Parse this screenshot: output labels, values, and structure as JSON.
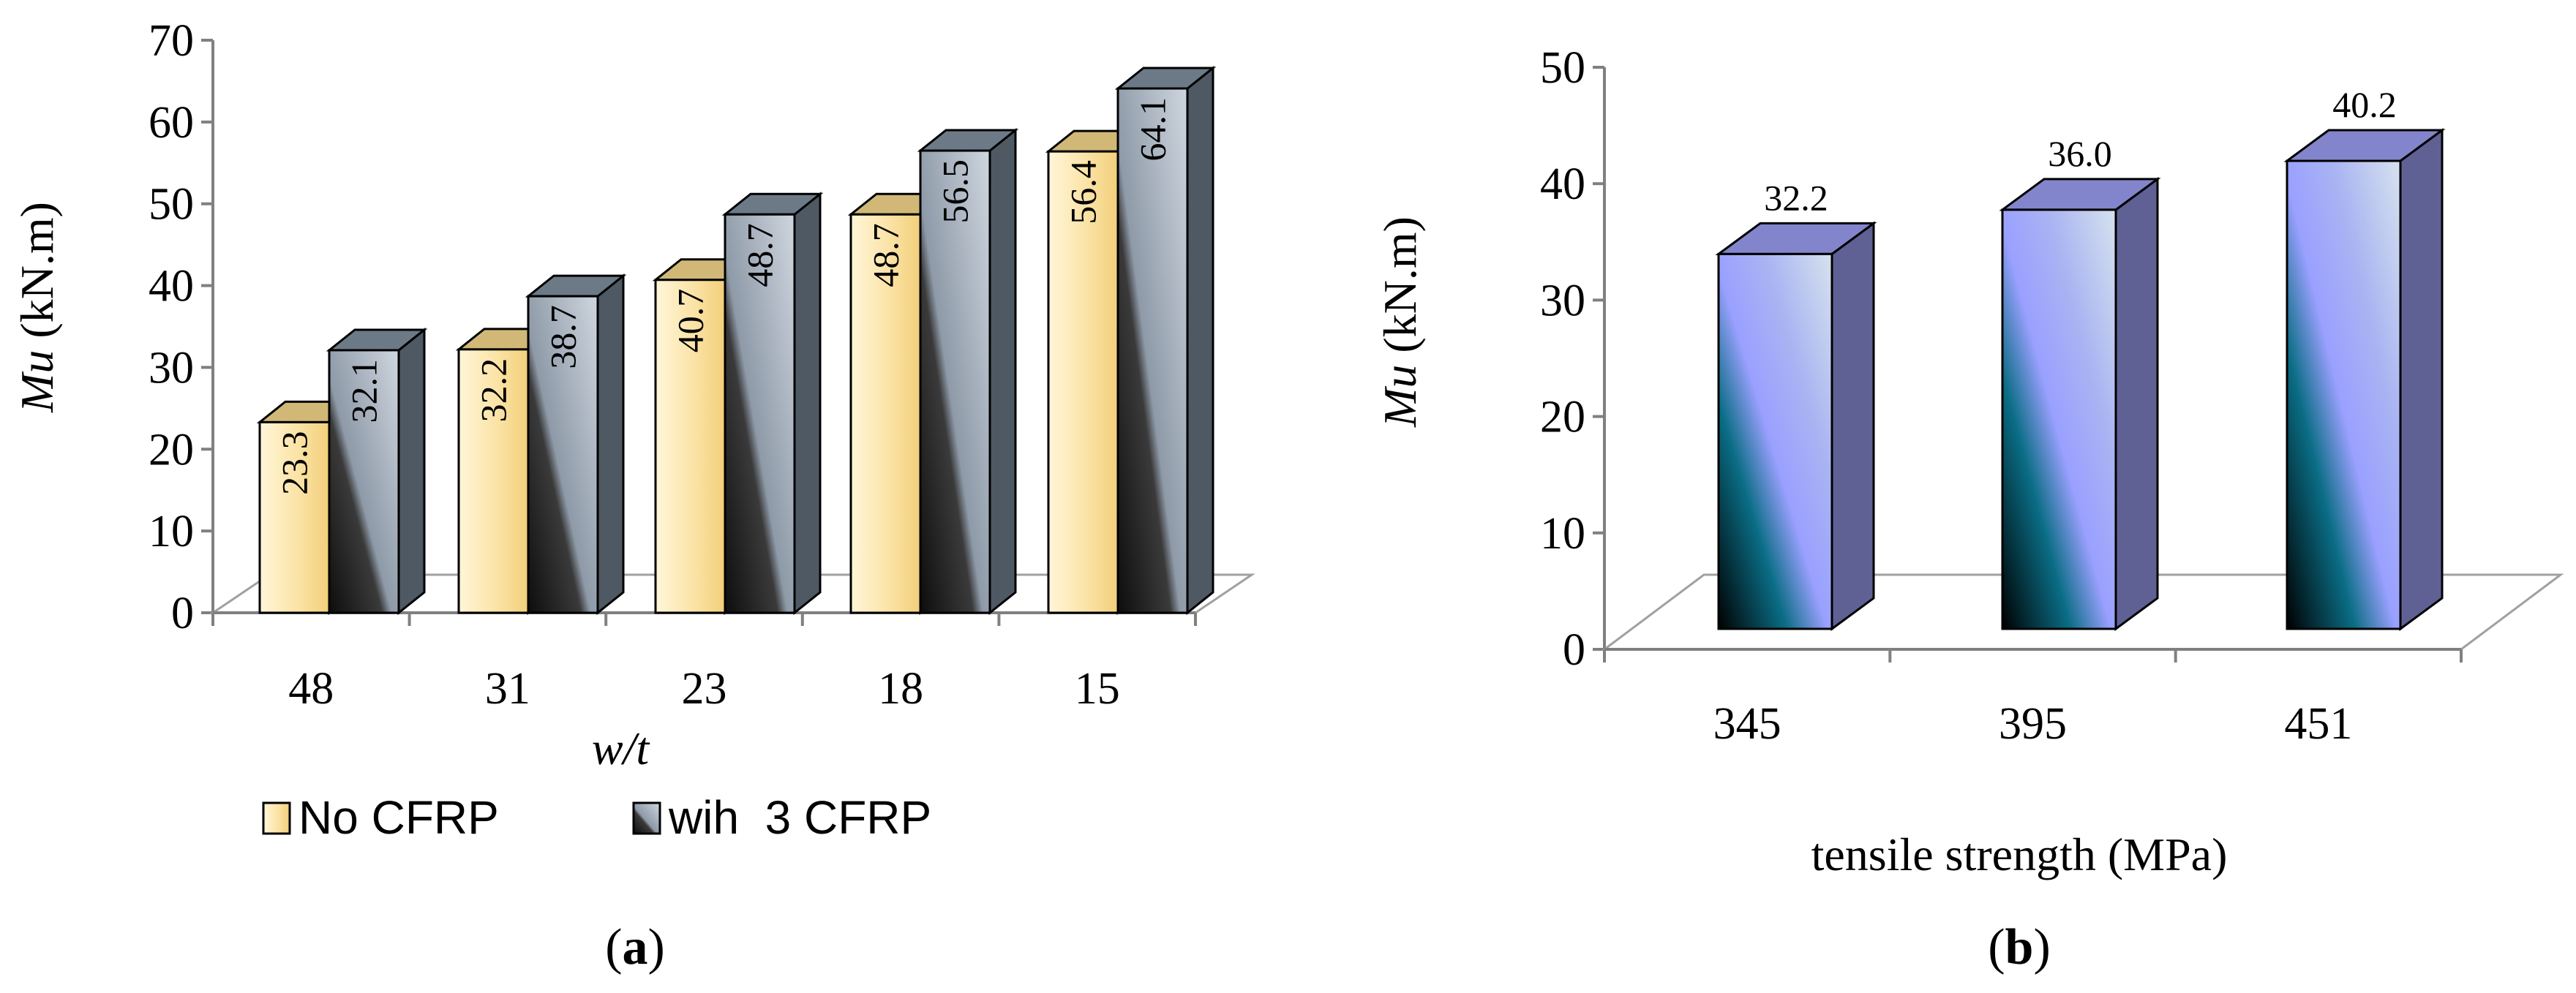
{
  "chart_data": [
    {
      "id": "a",
      "type": "bar",
      "panel_label": "(a)",
      "panel_letter": "a",
      "ylabel_italic": "Mu",
      "ylabel_rest": " (kN.m)",
      "xlabel": "w/t",
      "categories": [
        "48",
        "31",
        "23",
        "18",
        "15"
      ],
      "series": [
        {
          "name": "No CFRP",
          "values": [
            23.3,
            32.2,
            40.7,
            48.7,
            56.4
          ],
          "labels": [
            "23.3",
            "32.2",
            "40.7",
            "48.7",
            "56.4"
          ],
          "color": "#f6d88c"
        },
        {
          "name": "wih  3 CFRP",
          "values": [
            32.1,
            38.7,
            48.7,
            56.5,
            64.1
          ],
          "labels": [
            "32.1",
            "38.7",
            "48.7",
            "56.5",
            "64.1"
          ],
          "color": "#7f8f9f"
        }
      ],
      "ylim": [
        0,
        70
      ],
      "yticks": [
        "0",
        "10",
        "20",
        "30",
        "40",
        "50",
        "60",
        "70"
      ],
      "grid": false,
      "legend": "bottom"
    },
    {
      "id": "b",
      "type": "bar",
      "panel_label": "(b)",
      "panel_letter": "b",
      "ylabel_italic": "Mu",
      "ylabel_rest": " (kN.m)",
      "xlabel": "tensile strength (MPa)",
      "categories": [
        "345",
        "395",
        "451"
      ],
      "series": [
        {
          "values": [
            32.2,
            36.0,
            40.2
          ],
          "labels": [
            "32.2",
            "36.0",
            "40.2"
          ],
          "color": "#9a9cf0"
        }
      ],
      "ylim": [
        0,
        50
      ],
      "yticks": [
        "0",
        "10",
        "20",
        "30",
        "40",
        "50"
      ],
      "grid": false,
      "legend": "none"
    }
  ]
}
